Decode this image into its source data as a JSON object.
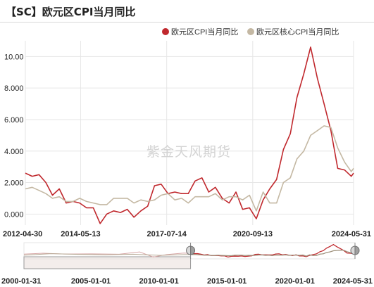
{
  "header": {
    "title": "【SC】欧元区CPI当月同比"
  },
  "watermark": "紫金天风期货",
  "colors": {
    "headline": "#c0282d",
    "core": "#c4b8a3",
    "grid": "#e6e6e6",
    "navigator_fill": "rgba(200,180,170,0.35)"
  },
  "chart_data": {
    "type": "line",
    "ylim": [
      -0.7,
      11
    ],
    "y_ticks": [
      0,
      2,
      4,
      6,
      8,
      10
    ],
    "y_tick_labels": [
      "0.000",
      "2.000",
      "4.000",
      "6.000",
      "8.000",
      "10.00"
    ],
    "legend_position": "top-right",
    "grid": true,
    "x_tick_labels": [
      "2012-04-30",
      "2014-05-13",
      "2017-07-14",
      "2020-09-13",
      "2024-05-31"
    ],
    "x_tick_dates": [
      "2012-04-30",
      "2014-05-13",
      "2017-07-14",
      "2020-09-13",
      "2024-05-31"
    ],
    "x_range": [
      "2012-04-30",
      "2024-05-31"
    ],
    "series": [
      {
        "name": "欧元区CPI当月同比",
        "points": [
          [
            "2012-04-30",
            2.6
          ],
          [
            "2012-07-31",
            2.4
          ],
          [
            "2012-10-31",
            2.5
          ],
          [
            "2013-01-31",
            2.0
          ],
          [
            "2013-04-30",
            1.2
          ],
          [
            "2013-07-31",
            1.6
          ],
          [
            "2013-10-31",
            0.7
          ],
          [
            "2014-01-31",
            0.8
          ],
          [
            "2014-04-30",
            0.7
          ],
          [
            "2014-07-31",
            0.4
          ],
          [
            "2014-10-31",
            0.4
          ],
          [
            "2015-01-31",
            -0.6
          ],
          [
            "2015-04-30",
            0.0
          ],
          [
            "2015-07-31",
            0.2
          ],
          [
            "2015-10-31",
            0.1
          ],
          [
            "2016-01-31",
            0.3
          ],
          [
            "2016-04-30",
            -0.2
          ],
          [
            "2016-07-31",
            0.2
          ],
          [
            "2016-10-31",
            0.5
          ],
          [
            "2017-01-31",
            1.8
          ],
          [
            "2017-04-30",
            1.9
          ],
          [
            "2017-07-31",
            1.3
          ],
          [
            "2017-10-31",
            1.4
          ],
          [
            "2018-01-31",
            1.3
          ],
          [
            "2018-04-30",
            1.3
          ],
          [
            "2018-07-31",
            2.1
          ],
          [
            "2018-10-31",
            2.3
          ],
          [
            "2019-01-31",
            1.4
          ],
          [
            "2019-04-30",
            1.7
          ],
          [
            "2019-07-31",
            1.0
          ],
          [
            "2019-10-31",
            0.7
          ],
          [
            "2020-01-31",
            1.4
          ],
          [
            "2020-04-30",
            0.3
          ],
          [
            "2020-07-31",
            0.4
          ],
          [
            "2020-10-31",
            -0.3
          ],
          [
            "2021-01-31",
            0.9
          ],
          [
            "2021-04-30",
            1.6
          ],
          [
            "2021-07-31",
            2.2
          ],
          [
            "2021-10-31",
            4.1
          ],
          [
            "2022-01-31",
            5.1
          ],
          [
            "2022-04-30",
            7.4
          ],
          [
            "2022-07-31",
            8.9
          ],
          [
            "2022-10-31",
            10.6
          ],
          [
            "2023-01-31",
            8.6
          ],
          [
            "2023-04-30",
            7.0
          ],
          [
            "2023-07-31",
            5.3
          ],
          [
            "2023-10-31",
            2.9
          ],
          [
            "2024-01-31",
            2.8
          ],
          [
            "2024-04-30",
            2.4
          ],
          [
            "2024-05-31",
            2.6
          ]
        ]
      },
      {
        "name": "欧元区核心CPI当月同比",
        "points": [
          [
            "2012-04-30",
            1.6
          ],
          [
            "2012-07-31",
            1.7
          ],
          [
            "2012-10-31",
            1.5
          ],
          [
            "2013-01-31",
            1.3
          ],
          [
            "2013-04-30",
            1.0
          ],
          [
            "2013-07-31",
            1.1
          ],
          [
            "2013-10-31",
            0.8
          ],
          [
            "2014-01-31",
            0.8
          ],
          [
            "2014-04-30",
            1.0
          ],
          [
            "2014-07-31",
            0.8
          ],
          [
            "2014-10-31",
            0.7
          ],
          [
            "2015-01-31",
            0.6
          ],
          [
            "2015-04-30",
            0.6
          ],
          [
            "2015-07-31",
            1.0
          ],
          [
            "2015-10-31",
            1.0
          ],
          [
            "2016-01-31",
            1.0
          ],
          [
            "2016-04-30",
            0.7
          ],
          [
            "2016-07-31",
            0.9
          ],
          [
            "2016-10-31",
            0.8
          ],
          [
            "2017-01-31",
            0.9
          ],
          [
            "2017-04-30",
            1.2
          ],
          [
            "2017-07-31",
            1.3
          ],
          [
            "2017-10-31",
            0.9
          ],
          [
            "2018-01-31",
            1.0
          ],
          [
            "2018-04-30",
            0.7
          ],
          [
            "2018-07-31",
            1.1
          ],
          [
            "2018-10-31",
            1.1
          ],
          [
            "2019-01-31",
            1.1
          ],
          [
            "2019-04-30",
            1.3
          ],
          [
            "2019-07-31",
            0.9
          ],
          [
            "2019-10-31",
            1.1
          ],
          [
            "2020-01-31",
            1.1
          ],
          [
            "2020-04-30",
            0.9
          ],
          [
            "2020-07-31",
            1.2
          ],
          [
            "2020-10-31",
            0.2
          ],
          [
            "2021-01-31",
            1.4
          ],
          [
            "2021-04-30",
            0.7
          ],
          [
            "2021-07-31",
            0.7
          ],
          [
            "2021-10-31",
            2.0
          ],
          [
            "2022-01-31",
            2.3
          ],
          [
            "2022-04-30",
            3.5
          ],
          [
            "2022-07-31",
            4.0
          ],
          [
            "2022-10-31",
            5.0
          ],
          [
            "2023-01-31",
            5.3
          ],
          [
            "2023-04-30",
            5.6
          ],
          [
            "2023-07-31",
            5.5
          ],
          [
            "2023-10-31",
            4.2
          ],
          [
            "2024-01-31",
            3.3
          ],
          [
            "2024-04-30",
            2.7
          ],
          [
            "2024-05-31",
            2.9
          ]
        ]
      }
    ]
  },
  "navigator": {
    "x_tick_labels": [
      "2000-01-31",
      "2005-01-01",
      "2010-01-01",
      "2015-01-01",
      "2020-01-01",
      "2024-05-31"
    ],
    "x_tick_dates": [
      "2000-01-31",
      "2005-01-01",
      "2010-01-01",
      "2015-01-01",
      "2020-01-01",
      "2024-05-31"
    ],
    "x_range": [
      "2000-01-31",
      "2024-05-31"
    ],
    "selection": [
      "2012-04-30",
      "2024-05-31"
    ],
    "ylim": [
      -1,
      11
    ],
    "series": [
      {
        "points": [
          [
            "2000-01-31",
            2.0
          ],
          [
            "2001-06-30",
            2.8
          ],
          [
            "2003-01-31",
            2.1
          ],
          [
            "2005-01-31",
            2.2
          ],
          [
            "2007-01-31",
            1.9
          ],
          [
            "2008-07-31",
            4.0
          ],
          [
            "2009-07-31",
            -0.6
          ],
          [
            "2010-07-31",
            1.6
          ],
          [
            "2011-10-31",
            3.0
          ],
          [
            "2012-04-30",
            2.6
          ]
        ]
      },
      {
        "points": [
          [
            "2000-01-31",
            1.0
          ],
          [
            "2002-01-31",
            2.4
          ],
          [
            "2004-01-31",
            1.8
          ],
          [
            "2006-01-31",
            1.4
          ],
          [
            "2008-01-31",
            1.9
          ],
          [
            "2010-01-31",
            0.9
          ],
          [
            "2011-10-31",
            1.6
          ],
          [
            "2012-04-30",
            1.6
          ]
        ]
      }
    ]
  }
}
